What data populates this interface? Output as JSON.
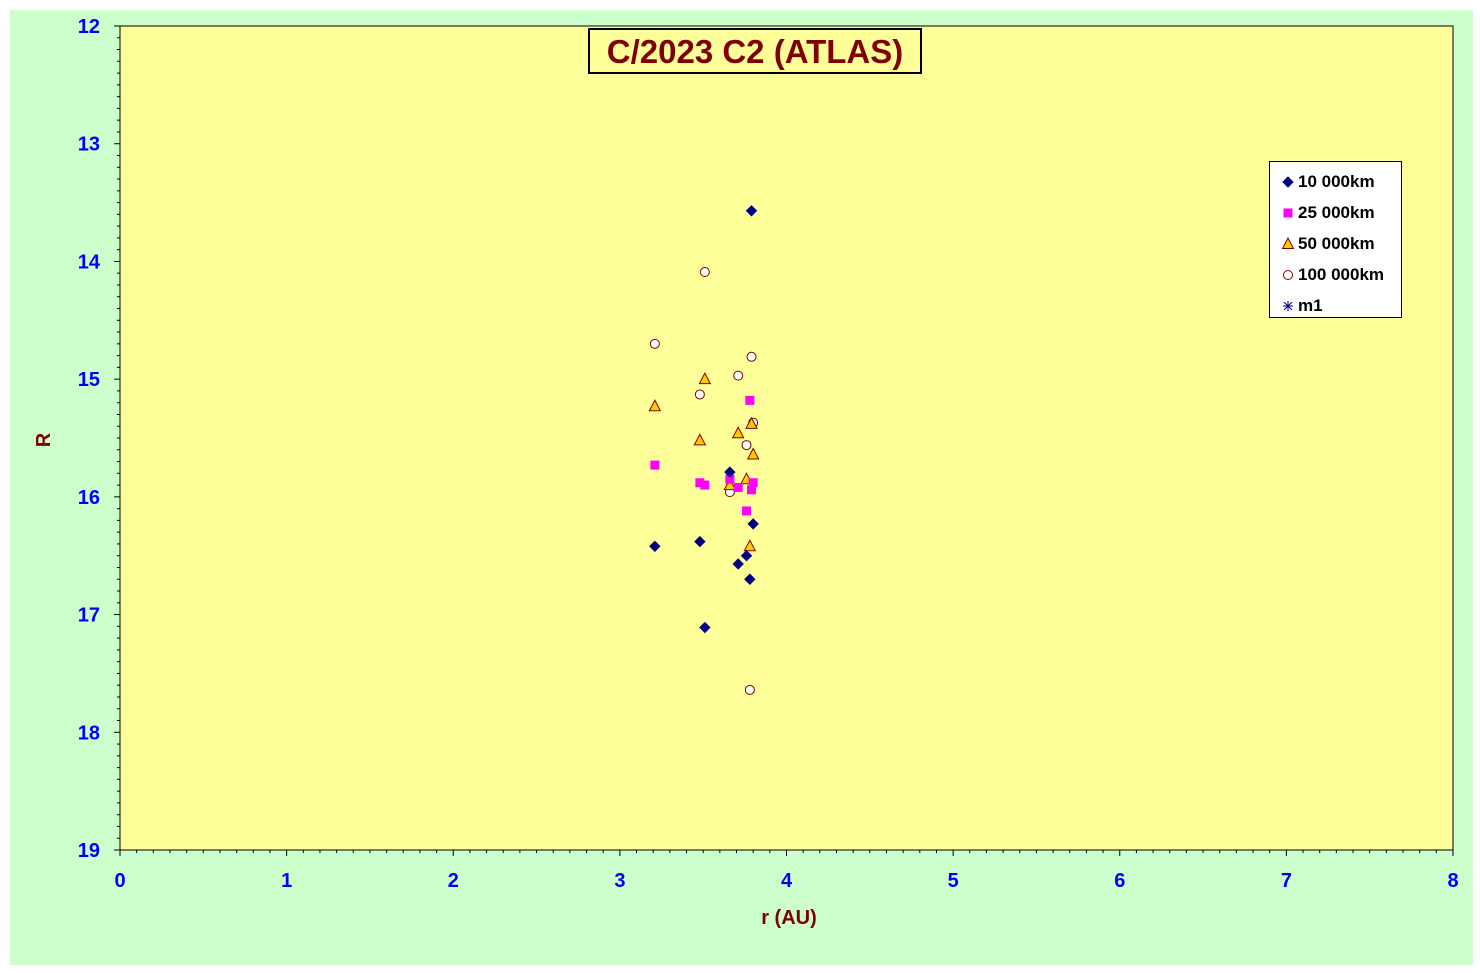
{
  "chart_data": {
    "type": "scatter",
    "title": "C/2023 C2 (ATLAS)",
    "xlabel": "r (AU)",
    "ylabel": "R",
    "xlim": [
      0,
      8
    ],
    "ylim": [
      12,
      19
    ],
    "y_inverted": true,
    "grid": false,
    "legend_position": "top-right",
    "x_ticks": [
      "0",
      "1",
      "2",
      "3",
      "4",
      "5",
      "6",
      "7",
      "8"
    ],
    "y_ticks": [
      "12",
      "13",
      "14",
      "15",
      "16",
      "17",
      "18",
      "19"
    ],
    "colors": {
      "chart_background": "#ccffcc",
      "plot_background": "#ffff99",
      "tick_labels": "#0000ff",
      "axis_titles": "#800000"
    },
    "series": [
      {
        "name": "10 000km",
        "marker": "diamond",
        "color": "#000080",
        "points": [
          [
            3.79,
            13.57
          ],
          [
            3.21,
            16.42
          ],
          [
            3.48,
            16.38
          ],
          [
            3.51,
            17.11
          ],
          [
            3.66,
            15.79
          ],
          [
            3.71,
            16.57
          ],
          [
            3.76,
            16.5
          ],
          [
            3.78,
            16.7
          ],
          [
            3.8,
            16.23
          ]
        ]
      },
      {
        "name": "25 000km",
        "marker": "square",
        "color": "#ff00ff",
        "points": [
          [
            3.21,
            15.73
          ],
          [
            3.48,
            15.88
          ],
          [
            3.51,
            15.9
          ],
          [
            3.66,
            15.85
          ],
          [
            3.71,
            15.92
          ],
          [
            3.76,
            16.12
          ],
          [
            3.78,
            15.18
          ],
          [
            3.79,
            15.94
          ],
          [
            3.8,
            15.88
          ]
        ]
      },
      {
        "name": "50 000km",
        "marker": "triangle",
        "color": "#ffcc00",
        "points": [
          [
            3.21,
            15.23
          ],
          [
            3.48,
            15.52
          ],
          [
            3.51,
            15.0
          ],
          [
            3.66,
            15.9
          ],
          [
            3.71,
            15.46
          ],
          [
            3.76,
            15.85
          ],
          [
            3.78,
            16.42
          ],
          [
            3.79,
            15.38
          ],
          [
            3.8,
            15.64
          ]
        ]
      },
      {
        "name": "100 000km",
        "marker": "circle",
        "color": "#ffffff",
        "points": [
          [
            3.21,
            14.7
          ],
          [
            3.48,
            15.13
          ],
          [
            3.51,
            14.09
          ],
          [
            3.66,
            15.96
          ],
          [
            3.71,
            14.97
          ],
          [
            3.76,
            15.56
          ],
          [
            3.78,
            17.64
          ],
          [
            3.79,
            14.81
          ],
          [
            3.8,
            15.37
          ]
        ]
      },
      {
        "name": "m1",
        "marker": "star",
        "color": "#000080",
        "points": []
      }
    ]
  }
}
